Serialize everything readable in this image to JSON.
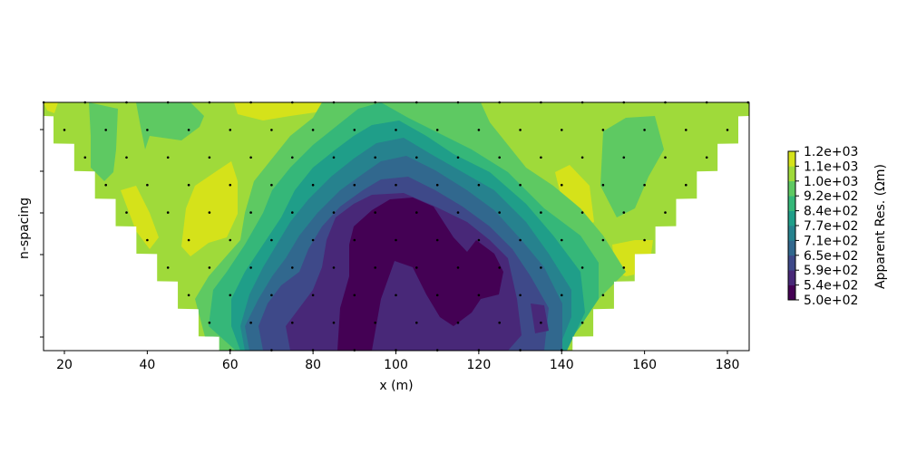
{
  "chart_data": {
    "type": "heatmap",
    "subtype": "filled-contour pseudosection",
    "title": "",
    "xlabel": "x (m)",
    "ylabel": "n-spacing",
    "xlim": [
      15,
      185
    ],
    "xticks": [
      20,
      40,
      60,
      80,
      100,
      120,
      140,
      160,
      180
    ],
    "yticks_count": 6,
    "yticks_labels": [],
    "colorbar": {
      "label": "Apparent Res. (Ωm)",
      "ticks": [
        "1.2e+03",
        "1.1e+03",
        "1.0e+03",
        "9.2e+02",
        "8.4e+02",
        "7.7e+02",
        "7.1e+02",
        "6.5e+02",
        "5.9e+02",
        "5.4e+02",
        "5.0e+02"
      ],
      "levels": [
        500,
        540,
        590,
        650,
        710,
        770,
        840,
        920,
        1000,
        1100,
        1200
      ],
      "colors": [
        "#440154",
        "#482878",
        "#3e4989",
        "#31688e",
        "#26828e",
        "#1f9e89",
        "#35b779",
        "#5ec962",
        "#9fda3a",
        "#d5e21a"
      ],
      "colormap": "viridis"
    },
    "measurement_rows": [
      {
        "n": 1,
        "x_start": 15,
        "x_end": 185,
        "step": 10
      },
      {
        "n": 2,
        "x_start": 20,
        "x_end": 180,
        "step": 10
      },
      {
        "n": 3,
        "x_start": 25,
        "x_end": 175,
        "step": 10
      },
      {
        "n": 4,
        "x_start": 30,
        "x_end": 170,
        "step": 10
      },
      {
        "n": 5,
        "x_start": 35,
        "x_end": 165,
        "step": 10
      },
      {
        "n": 6,
        "x_start": 40,
        "x_end": 160,
        "step": 10
      },
      {
        "n": 7,
        "x_start": 45,
        "x_end": 155,
        "step": 10
      },
      {
        "n": 8,
        "x_start": 50,
        "x_end": 150,
        "step": 10
      },
      {
        "n": 9,
        "x_start": 55,
        "x_end": 145,
        "step": 10
      },
      {
        "n": 10,
        "x_start": 60,
        "x_end": 140,
        "step": 10
      }
    ],
    "summary": "Low-resistivity anomaly (~500-540 Ωm) centred near x=90-110 m at depth; high values (~1000-1200 Ωm) near surface and at flanks"
  }
}
